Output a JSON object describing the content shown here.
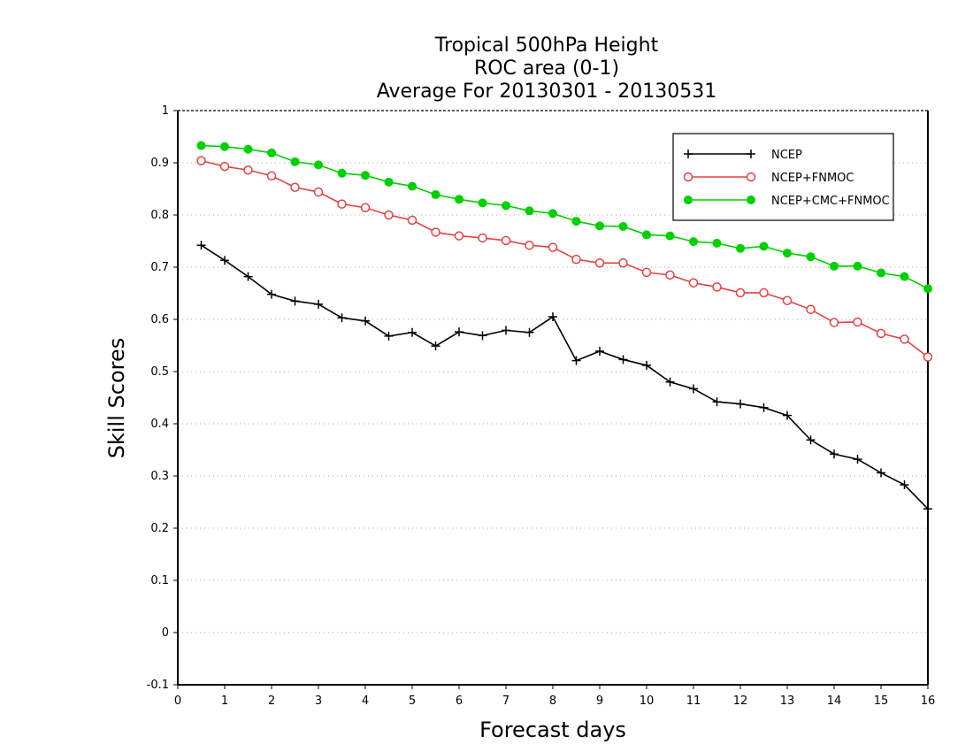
{
  "chart_data": {
    "type": "line",
    "title_lines": [
      "Tropical 500hPa Height",
      "ROC area (0-1)",
      "Average For 20130301 - 20130531"
    ],
    "xlabel": "Forecast days",
    "ylabel": "Skill Scores",
    "xlim": [
      0,
      16
    ],
    "ylim": [
      -0.1,
      1
    ],
    "x_ticks": [
      "0",
      "1",
      "2",
      "3",
      "4",
      "5",
      "6",
      "7",
      "8",
      "9",
      "10",
      "11",
      "12",
      "13",
      "14",
      "15",
      "16"
    ],
    "y_ticks": [
      "-0.1",
      "0",
      "0.1",
      "0.2",
      "0.3",
      "0.4",
      "0.5",
      "0.6",
      "0.7",
      "0.8",
      "0.9",
      "1"
    ],
    "grid": "horizontal dotted",
    "legend_position": "top-right",
    "x": [
      0.5,
      1,
      1.5,
      2,
      2.5,
      3,
      3.5,
      4,
      4.5,
      5,
      5.5,
      6,
      6.5,
      7,
      7.5,
      8,
      8.5,
      9,
      9.5,
      10,
      10.5,
      11,
      11.5,
      12,
      12.5,
      13,
      13.5,
      14,
      14.5,
      15,
      15.5,
      16
    ],
    "series": [
      {
        "name": "NCEP",
        "color": "#000000",
        "marker": "plus",
        "values": [
          0.742,
          0.713,
          0.682,
          0.648,
          0.635,
          0.629,
          0.603,
          0.597,
          0.568,
          0.575,
          0.549,
          0.576,
          0.569,
          0.579,
          0.575,
          0.605,
          0.521,
          0.539,
          0.523,
          0.512,
          0.48,
          0.467,
          0.442,
          0.438,
          0.431,
          0.416,
          0.369,
          0.342,
          0.332,
          0.306,
          0.283,
          0.237
        ]
      },
      {
        "name": "NCEP+FNMOC",
        "color": "#e84040",
        "marker": "open-circle",
        "values": [
          0.904,
          0.893,
          0.886,
          0.875,
          0.853,
          0.844,
          0.821,
          0.814,
          0.8,
          0.79,
          0.767,
          0.76,
          0.756,
          0.751,
          0.742,
          0.738,
          0.715,
          0.708,
          0.708,
          0.69,
          0.685,
          0.67,
          0.662,
          0.651,
          0.651,
          0.636,
          0.619,
          0.594,
          0.595,
          0.573,
          0.562,
          0.528
        ]
      },
      {
        "name": "NCEP+CMC+FNMOC",
        "color": "#00d000",
        "marker": "filled-circle",
        "values": [
          0.933,
          0.931,
          0.926,
          0.919,
          0.902,
          0.896,
          0.88,
          0.876,
          0.863,
          0.855,
          0.839,
          0.83,
          0.823,
          0.818,
          0.808,
          0.803,
          0.788,
          0.779,
          0.778,
          0.762,
          0.76,
          0.749,
          0.746,
          0.736,
          0.74,
          0.727,
          0.72,
          0.702,
          0.702,
          0.689,
          0.682,
          0.659
        ]
      }
    ]
  }
}
